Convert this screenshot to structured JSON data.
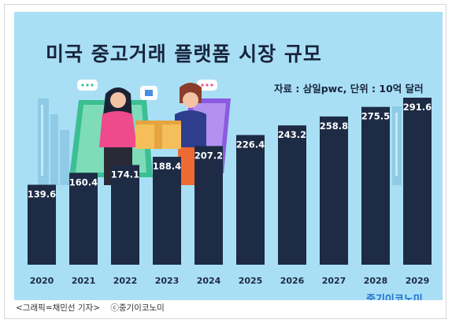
{
  "chart_data": {
    "type": "bar",
    "title": "미국 중고거래 플랫폼 시장 규모",
    "subtitle": "자료 : 삼일pwc, 단위 : 10억 달러",
    "categories": [
      "2020",
      "2021",
      "2022",
      "2023",
      "2024",
      "2025",
      "2026",
      "2027",
      "2028",
      "2029"
    ],
    "values": [
      139.6,
      160.4,
      174.1,
      188.4,
      207.2,
      226.4,
      243.2,
      258.8,
      275.5,
      291.6
    ],
    "value_labels": [
      "139.6",
      "160.4",
      "174.1",
      "188.4",
      "207.2",
      "226.4",
      "243.2",
      "258.8",
      "275.5",
      "291.6"
    ],
    "xlabel": "",
    "ylabel": "",
    "grid": false,
    "bar_color": "#1d2b45",
    "background_color": "#a9dff5"
  },
  "logo_text": "중기이코노미",
  "caption": {
    "credit": "<그래픽=채민선 기자>",
    "copyright": "ⓒ중기이코노미"
  }
}
